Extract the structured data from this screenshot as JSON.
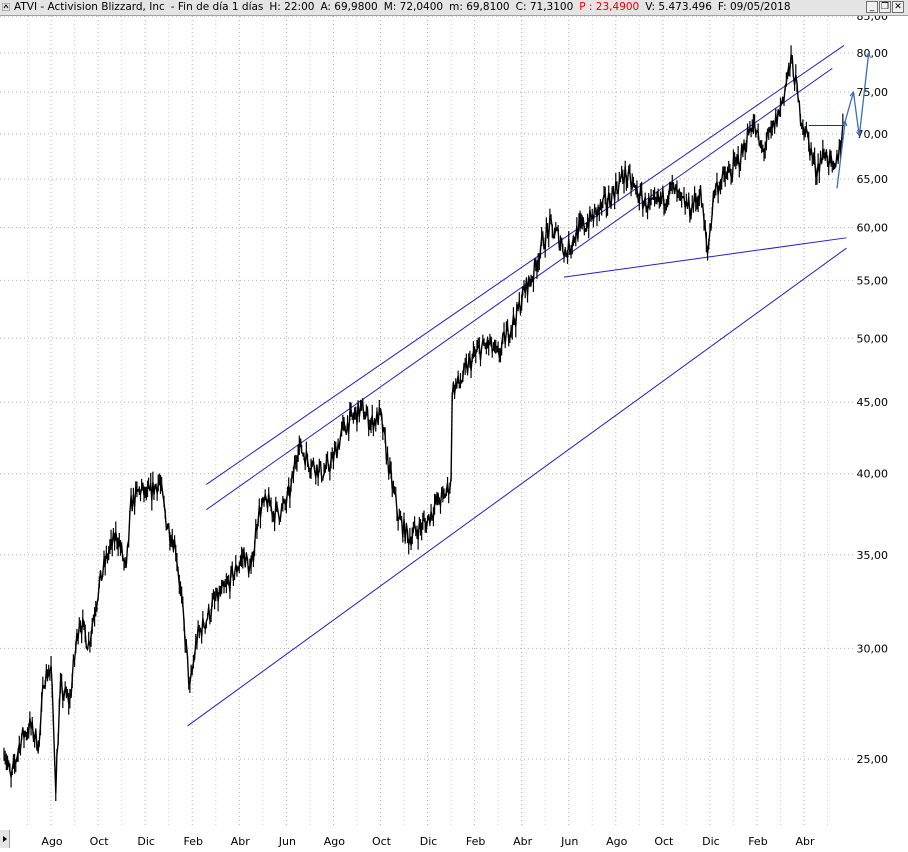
{
  "header": {
    "symbol_title": "ATVI - Activision Blizzard, Inc",
    "period": "- Fin de día 1 días",
    "high": "H: 22:00",
    "open": "A: 69,9800",
    "max": "M: 72,0400",
    "min": "m: 69,8100",
    "close": "C: 71,3100",
    "price_label": "P : 23,4900",
    "volume": "V: 5.473.496",
    "date": "F: 09/05/2018",
    "btn_minimize": "_",
    "btn_restore": "❐",
    "btn_close": "✕"
  },
  "colors": {
    "price": "#000000",
    "trendline": "#2020c8",
    "projection": "#3a6fb0",
    "grid": "#b0b0b0"
  },
  "chart_data": {
    "type": "line",
    "scale": "log",
    "ylim": [
      23.5,
      85
    ],
    "y_ticks": [
      25,
      30,
      35,
      40,
      45,
      50,
      55,
      60,
      65,
      70,
      75,
      80,
      85
    ],
    "y_tick_labels": [
      "25,00",
      "30,00",
      "35,00",
      "40,00",
      "45,00",
      "50,00",
      "55,00",
      "60,00",
      "65,00",
      "70,00",
      "75,00",
      "80,00",
      "85,00"
    ],
    "x_ticks": [
      "Ago",
      "Oct",
      "Dic",
      "Feb",
      "Abr",
      "Jun",
      "Ago",
      "Oct",
      "Dic",
      "Feb",
      "Abr",
      "Jun",
      "Ago",
      "Oct",
      "Dic",
      "Feb",
      "Abr"
    ],
    "x_tick_months": [
      2,
      4,
      6,
      8,
      10,
      12,
      14,
      16,
      18,
      20,
      22,
      24,
      26,
      28,
      30,
      32,
      34
    ],
    "x_range_months": [
      0,
      35.8
    ],
    "grid": true,
    "series": [
      {
        "role": "price",
        "points": [
          [
            0,
            25.5
          ],
          [
            0.3,
            24.1
          ],
          [
            0.7,
            25.8
          ],
          [
            1.1,
            26.4
          ],
          [
            1.5,
            25.6
          ],
          [
            1.7,
            28.6
          ],
          [
            2.0,
            29.0
          ],
          [
            2.2,
            24.0
          ],
          [
            2.4,
            28.0
          ],
          [
            2.8,
            27.5
          ],
          [
            3.2,
            31.5
          ],
          [
            3.6,
            30.2
          ],
          [
            4.0,
            33.0
          ],
          [
            4.4,
            35.0
          ],
          [
            4.8,
            36.2
          ],
          [
            5.2,
            34.0
          ],
          [
            5.4,
            38.0
          ],
          [
            5.8,
            39.0
          ],
          [
            6.1,
            38.5
          ],
          [
            6.6,
            39.5
          ],
          [
            6.9,
            37.0
          ],
          [
            7.3,
            35.5
          ],
          [
            7.7,
            30.5
          ],
          [
            7.9,
            28.0
          ],
          [
            8.2,
            30.5
          ],
          [
            8.6,
            31.5
          ],
          [
            9.0,
            32.5
          ],
          [
            9.4,
            33.0
          ],
          [
            9.8,
            34.0
          ],
          [
            10.2,
            35.0
          ],
          [
            10.5,
            34.0
          ],
          [
            10.8,
            37.5
          ],
          [
            11.2,
            38.2
          ],
          [
            11.5,
            37.5
          ],
          [
            11.9,
            37.8
          ],
          [
            12.2,
            39.0
          ],
          [
            12.5,
            42.0
          ],
          [
            12.9,
            41.0
          ],
          [
            13.2,
            40.5
          ],
          [
            13.6,
            40.0
          ],
          [
            14.0,
            41.0
          ],
          [
            14.4,
            43.0
          ],
          [
            14.8,
            43.8
          ],
          [
            15.2,
            44.5
          ],
          [
            15.6,
            43.5
          ],
          [
            16.0,
            44.0
          ],
          [
            16.4,
            40.0
          ],
          [
            16.8,
            37.0
          ],
          [
            17.2,
            36.0
          ],
          [
            17.6,
            36.5
          ],
          [
            18.0,
            37.0
          ],
          [
            18.3,
            38.0
          ],
          [
            18.7,
            38.5
          ],
          [
            19.0,
            39.5
          ],
          [
            19.05,
            46.0
          ],
          [
            19.4,
            46.5
          ],
          [
            19.8,
            48.0
          ],
          [
            20.2,
            49.0
          ],
          [
            20.6,
            49.5
          ],
          [
            21.0,
            48.5
          ],
          [
            21.4,
            50.5
          ],
          [
            21.8,
            52.0
          ],
          [
            22.1,
            54.0
          ],
          [
            22.5,
            55.5
          ],
          [
            22.8,
            58.0
          ],
          [
            23.2,
            60.0
          ],
          [
            23.6,
            59.0
          ],
          [
            23.9,
            57.5
          ],
          [
            24.3,
            59.5
          ],
          [
            24.8,
            60.5
          ],
          [
            25.2,
            61.5
          ],
          [
            25.6,
            62.5
          ],
          [
            26.0,
            64.0
          ],
          [
            26.4,
            65.5
          ],
          [
            26.8,
            64.0
          ],
          [
            27.2,
            62.5
          ],
          [
            27.6,
            62.0
          ],
          [
            28.0,
            63.0
          ],
          [
            28.4,
            64.0
          ],
          [
            28.8,
            62.5
          ],
          [
            29.2,
            62.0
          ],
          [
            29.6,
            63.5
          ],
          [
            29.9,
            57.5
          ],
          [
            30.2,
            64.0
          ],
          [
            30.6,
            65.0
          ],
          [
            31.0,
            66.0
          ],
          [
            31.4,
            68.0
          ],
          [
            31.8,
            71.5
          ],
          [
            32.2,
            68.0
          ],
          [
            32.6,
            70.0
          ],
          [
            33.0,
            73.0
          ],
          [
            33.3,
            77.0
          ],
          [
            33.5,
            79.0
          ],
          [
            33.8,
            73.0
          ],
          [
            34.1,
            70.0
          ],
          [
            34.5,
            66.0
          ],
          [
            34.9,
            68.0
          ],
          [
            35.3,
            65.5
          ],
          [
            35.7,
            71.3
          ]
        ]
      },
      {
        "role": "channel",
        "lines": [
          {
            "from": [
              7.8,
              26.4
            ],
            "to": [
              35.8,
              58.0
            ]
          },
          {
            "from": [
              8.6,
              39.3
            ],
            "to": [
              35.7,
              81.0
            ]
          },
          {
            "from": [
              8.6,
              37.7
            ],
            "to": [
              35.2,
              78.0
            ]
          },
          {
            "from": [
              23.8,
              55.3
            ],
            "to": [
              35.8,
              59.0
            ]
          },
          {
            "from": [
              34.2,
              71.0
            ],
            "to": [
              35.7,
              71.0
            ]
          }
        ]
      },
      {
        "role": "projection",
        "points": [
          [
            35.4,
            64.0
          ],
          [
            35.75,
            71.5
          ],
          [
            36.1,
            75.0
          ],
          [
            36.35,
            69.8
          ],
          [
            36.75,
            80.0
          ]
        ]
      }
    ]
  }
}
